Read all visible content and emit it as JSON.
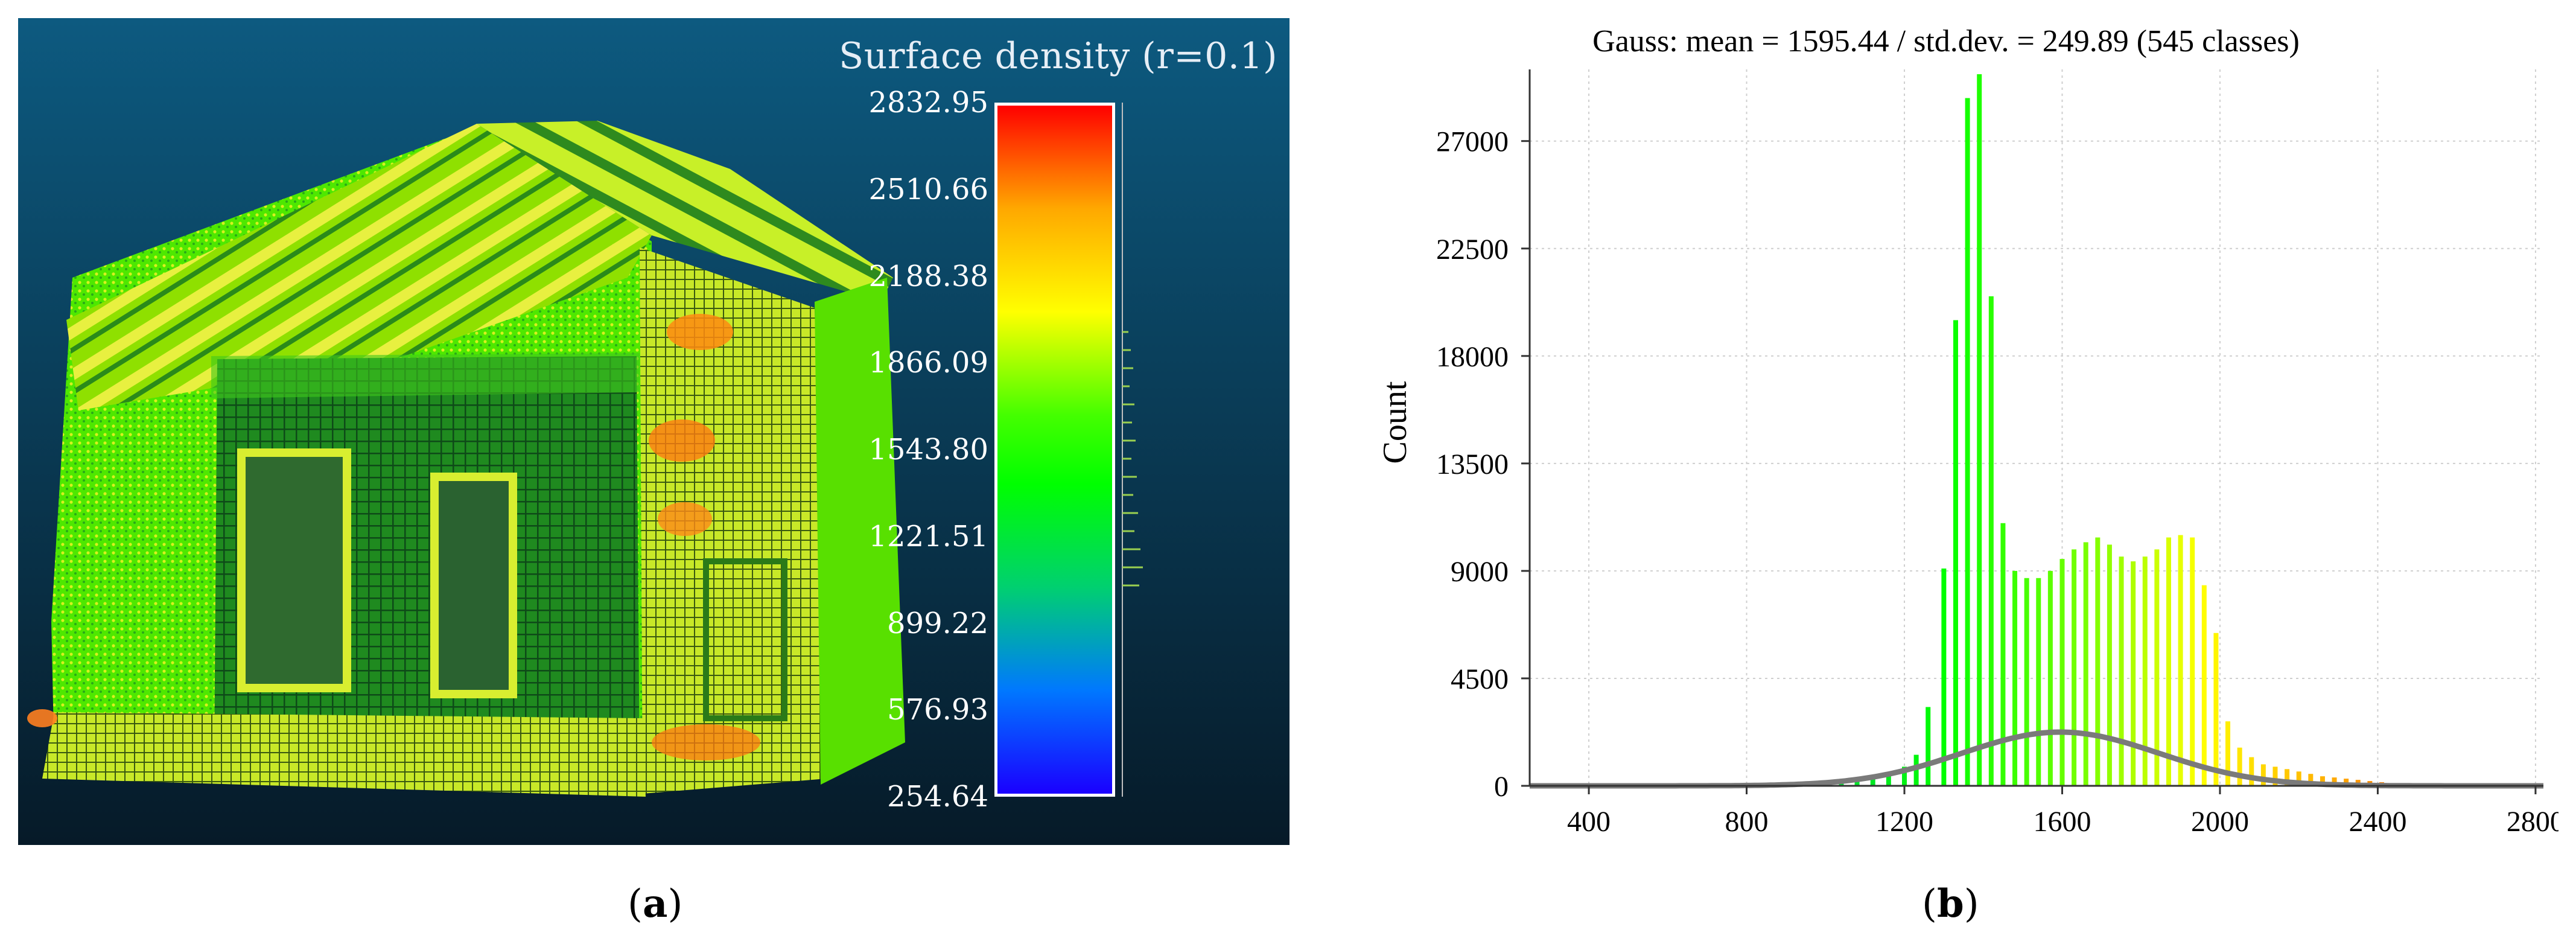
{
  "panel_a": {
    "label_prefix": "(",
    "label_letter": "a",
    "label_suffix": ")",
    "scale_title": "Surface density (r=0.1)",
    "colorbar_ticks": [
      "2832.95",
      "2510.66",
      "2188.38",
      "1866.09",
      "1543.80",
      "1221.51",
      "899.22",
      "576.93",
      "254.64"
    ],
    "colors": {
      "background_top": "#0d5a80",
      "background_bottom": "#061a28",
      "bar_border": "#ffffff"
    }
  },
  "panel_b": {
    "label_prefix": "(",
    "label_letter": "b",
    "label_suffix": ")"
  },
  "chart_data": {
    "type": "bar",
    "title": "Gauss: mean = 1595.44 / std.dev. = 249.89 (545 classes)",
    "xlabel": "",
    "ylabel": "Count",
    "xlim": [
      250,
      2820
    ],
    "ylim": [
      0,
      30000
    ],
    "xticks": [
      400,
      800,
      1200,
      1600,
      2000,
      2400,
      2800
    ],
    "yticks": [
      0,
      4500,
      9000,
      13500,
      18000,
      22500,
      27000
    ],
    "grid": true,
    "bars": [
      {
        "x": 720,
        "y": 50
      },
      {
        "x": 760,
        "y": 80
      },
      {
        "x": 800,
        "y": 100
      },
      {
        "x": 840,
        "y": 120
      },
      {
        "x": 880,
        "y": 120
      },
      {
        "x": 920,
        "y": 150
      },
      {
        "x": 960,
        "y": 150
      },
      {
        "x": 1000,
        "y": 200
      },
      {
        "x": 1040,
        "y": 250
      },
      {
        "x": 1080,
        "y": 300
      },
      {
        "x": 1120,
        "y": 400
      },
      {
        "x": 1160,
        "y": 500
      },
      {
        "x": 1200,
        "y": 800
      },
      {
        "x": 1230,
        "y": 1300
      },
      {
        "x": 1260,
        "y": 3300
      },
      {
        "x": 1300,
        "y": 9100
      },
      {
        "x": 1330,
        "y": 19500
      },
      {
        "x": 1360,
        "y": 28800
      },
      {
        "x": 1390,
        "y": 29800
      },
      {
        "x": 1420,
        "y": 20500
      },
      {
        "x": 1450,
        "y": 11000
      },
      {
        "x": 1480,
        "y": 9000
      },
      {
        "x": 1510,
        "y": 8700
      },
      {
        "x": 1540,
        "y": 8700
      },
      {
        "x": 1570,
        "y": 9000
      },
      {
        "x": 1600,
        "y": 9500
      },
      {
        "x": 1630,
        "y": 9900
      },
      {
        "x": 1660,
        "y": 10200
      },
      {
        "x": 1690,
        "y": 10400
      },
      {
        "x": 1720,
        "y": 10100
      },
      {
        "x": 1750,
        "y": 9600
      },
      {
        "x": 1780,
        "y": 9400
      },
      {
        "x": 1810,
        "y": 9600
      },
      {
        "x": 1840,
        "y": 9900
      },
      {
        "x": 1870,
        "y": 10400
      },
      {
        "x": 1900,
        "y": 10500
      },
      {
        "x": 1930,
        "y": 10400
      },
      {
        "x": 1960,
        "y": 8400
      },
      {
        "x": 1990,
        "y": 6400
      },
      {
        "x": 2020,
        "y": 2700
      },
      {
        "x": 2050,
        "y": 1600
      },
      {
        "x": 2080,
        "y": 1200
      },
      {
        "x": 2110,
        "y": 900
      },
      {
        "x": 2140,
        "y": 800
      },
      {
        "x": 2170,
        "y": 700
      },
      {
        "x": 2200,
        "y": 600
      },
      {
        "x": 2230,
        "y": 500
      },
      {
        "x": 2260,
        "y": 400
      },
      {
        "x": 2290,
        "y": 350
      },
      {
        "x": 2320,
        "y": 300
      },
      {
        "x": 2350,
        "y": 250
      },
      {
        "x": 2380,
        "y": 200
      },
      {
        "x": 2410,
        "y": 150
      },
      {
        "x": 2440,
        "y": 100
      },
      {
        "x": 2470,
        "y": 60
      }
    ],
    "gauss_curve": {
      "mean": 1595.44,
      "std": 249.89,
      "peak": 2250,
      "color": "#7a7a7a"
    },
    "bar_colormap": [
      {
        "v": 254.64,
        "color": "#1a00ff"
      },
      {
        "v": 800,
        "color": "#00c060"
      },
      {
        "v": 1300,
        "color": "#00ff00"
      },
      {
        "v": 1700,
        "color": "#88ff00"
      },
      {
        "v": 1950,
        "color": "#ffff00"
      },
      {
        "v": 2300,
        "color": "#ffa800"
      },
      {
        "v": 2832.95,
        "color": "#ff0000"
      }
    ]
  }
}
